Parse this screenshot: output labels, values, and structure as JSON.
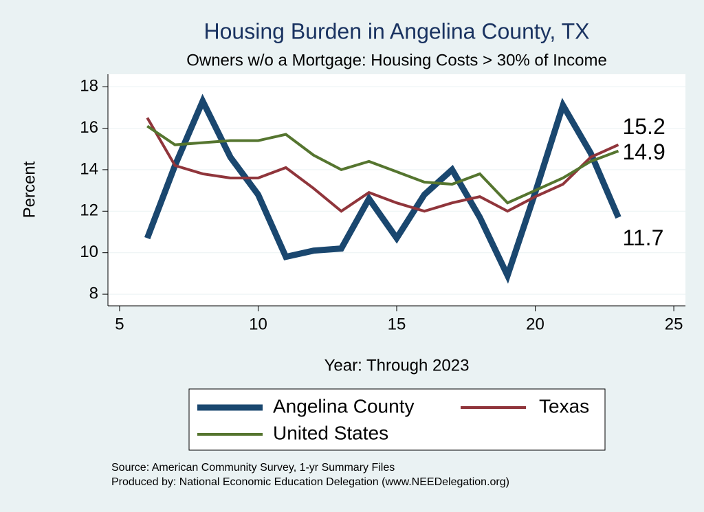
{
  "chart_data": {
    "type": "line",
    "title": "Housing Burden in Angelina County, TX",
    "subtitle": "Owners w/o a Mortgage: Housing Costs > 30% of Income",
    "x_label": "Year: Through 2023",
    "y_label": "Percent",
    "x": [
      6,
      7,
      8,
      9,
      10,
      11,
      12,
      13,
      14,
      15,
      16,
      17,
      18,
      19,
      20,
      21,
      22,
      23
    ],
    "series": [
      {
        "name": "Angelina County",
        "color": "#1a476f",
        "values": [
          10.7,
          14.2,
          17.3,
          14.6,
          12.8,
          9.8,
          10.1,
          10.2,
          12.6,
          10.7,
          12.8,
          14.0,
          11.7,
          8.9,
          12.9,
          17.1,
          14.8,
          11.7
        ]
      },
      {
        "name": "Texas",
        "color": "#90353b",
        "values": [
          16.5,
          14.2,
          13.8,
          13.6,
          13.6,
          14.1,
          13.1,
          12.0,
          12.9,
          12.4,
          12.0,
          12.4,
          12.7,
          12.0,
          12.7,
          13.3,
          14.6,
          15.2
        ]
      },
      {
        "name": "United States",
        "color": "#55752f",
        "values": [
          16.1,
          15.2,
          15.3,
          15.4,
          15.4,
          15.7,
          14.7,
          14.0,
          14.4,
          13.9,
          13.4,
          13.3,
          13.8,
          12.4,
          13.0,
          13.6,
          14.4,
          14.9
        ]
      }
    ],
    "xlim": [
      4.58,
      25.42
    ],
    "xticks": [
      5,
      10,
      15,
      20,
      25
    ],
    "ylim": [
      7.44,
      18.6
    ],
    "yticks": [
      8,
      10,
      12,
      14,
      16,
      18
    ],
    "grid": true,
    "notes": [
      "Source: American Community Survey, 1-yr Summary Files",
      "Produced by: National Economic Education Delegation (www.NEEDelegation.org)"
    ]
  }
}
